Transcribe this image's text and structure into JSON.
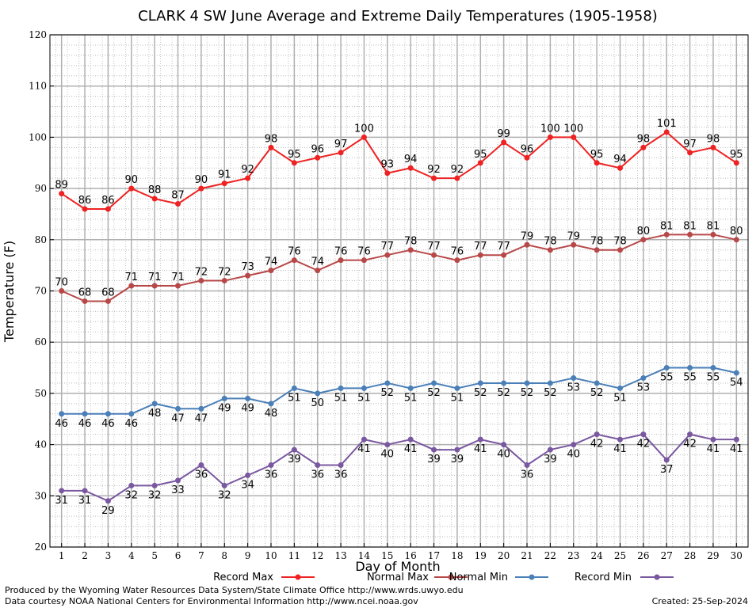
{
  "chart_data": {
    "type": "line",
    "title": "CLARK 4 SW June Average and Extreme Daily Temperatures (1905-1958)",
    "xlabel": "Day of Month",
    "ylabel": "Temperature (F)",
    "x": [
      1,
      2,
      3,
      4,
      5,
      6,
      7,
      8,
      9,
      10,
      11,
      12,
      13,
      14,
      15,
      16,
      17,
      18,
      19,
      20,
      21,
      22,
      23,
      24,
      25,
      26,
      27,
      28,
      29,
      30
    ],
    "x_tick_labels": [
      "1",
      "2",
      "3",
      "4",
      "5",
      "6",
      "7",
      "8",
      "9",
      "10",
      "11",
      "12",
      "13",
      "14",
      "15",
      "16",
      "17",
      "18",
      "19",
      "20",
      "21",
      "22",
      "23",
      "24",
      "25",
      "26",
      "27",
      "28",
      "29",
      "30"
    ],
    "xlim": [
      0.5,
      30.5
    ],
    "ylim": [
      20,
      120
    ],
    "y_ticks": [
      20,
      30,
      40,
      50,
      60,
      70,
      80,
      90,
      100,
      110,
      120
    ],
    "y_tick_labels": [
      "20",
      "30",
      "40",
      "50",
      "60",
      "70",
      "80",
      "90",
      "100",
      "110",
      "120"
    ],
    "grid": true,
    "legend_position": "bottom",
    "series": [
      {
        "name": "Record Max",
        "color": "#ee2222",
        "label_position": "above",
        "values": [
          89,
          86,
          86,
          90,
          88,
          87,
          90,
          91,
          92,
          98,
          95,
          96,
          97,
          100,
          93,
          94,
          92,
          92,
          95,
          99,
          96,
          100,
          100,
          95,
          94,
          98,
          101,
          97,
          98,
          95
        ]
      },
      {
        "name": "Normal Max",
        "color": "#b84848",
        "label_position": "above",
        "values": [
          70,
          68,
          68,
          71,
          71,
          71,
          72,
          72,
          73,
          74,
          76,
          74,
          76,
          76,
          77,
          78,
          77,
          76,
          77,
          77,
          79,
          78,
          79,
          78,
          78,
          80,
          81,
          81,
          81,
          80
        ]
      },
      {
        "name": "Normal Min",
        "color": "#4a7fb8",
        "label_position": "below",
        "values": [
          46,
          46,
          46,
          46,
          48,
          47,
          47,
          49,
          49,
          48,
          51,
          50,
          51,
          51,
          52,
          51,
          52,
          51,
          52,
          52,
          52,
          52,
          53,
          52,
          51,
          53,
          55,
          55,
          55,
          54
        ]
      },
      {
        "name": "Record Min",
        "color": "#7a58a0",
        "label_position": "below",
        "values": [
          31,
          31,
          29,
          32,
          32,
          33,
          36,
          32,
          34,
          36,
          39,
          36,
          36,
          41,
          40,
          41,
          39,
          39,
          41,
          40,
          36,
          39,
          40,
          42,
          41,
          42,
          37,
          42,
          41,
          41
        ]
      }
    ]
  },
  "footer": {
    "line1": "Produced by the Wyoming Water Resources Data System/State Climate Office http://www.wrds.uwyo.edu",
    "line2": "Data courtesy NOAA National Centers for Environmental Information http://www.ncei.noaa.gov",
    "created": "Created:  25-Sep-2024"
  }
}
